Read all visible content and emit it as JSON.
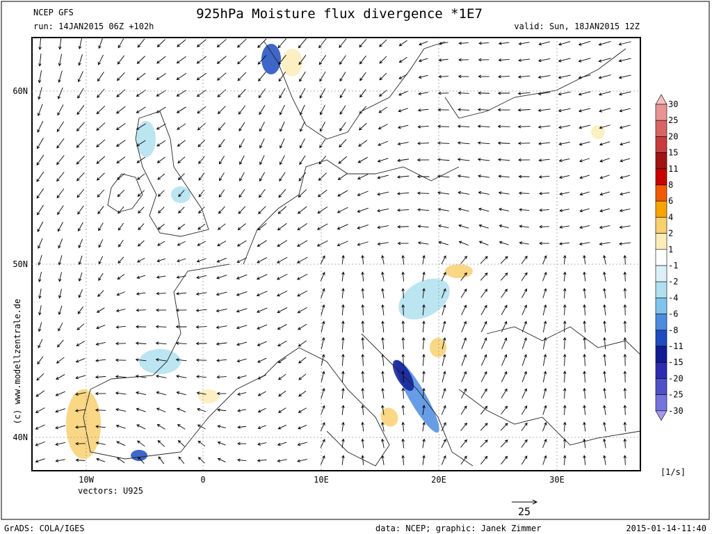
{
  "header": {
    "source": "NCEP GFS",
    "run": "run: 14JAN2015 06Z +102h",
    "title": "925hPa Moisture flux divergence *1E7",
    "valid": "valid: Sun, 18JAN2015 12Z"
  },
  "map": {
    "lat_labels": [
      "60N",
      "50N",
      "40N"
    ],
    "lon_labels": [
      "10W",
      "0",
      "10E",
      "20E",
      "30E"
    ],
    "vectors_label": "vectors: U925",
    "reference_vector": "25",
    "watermark": "(c) www.modellzentrale.de"
  },
  "colorbar": {
    "levels": [
      30,
      25,
      20,
      15,
      11,
      8,
      6,
      4,
      2,
      1,
      -1,
      -2,
      -4,
      -6,
      -8,
      -11,
      -15,
      -20,
      -25,
      -30
    ],
    "colors": [
      "#f4c0c0",
      "#e89494",
      "#d86464",
      "#c83c3c",
      "#a01414",
      "#c80000",
      "#f05a00",
      "#f8a400",
      "#f8d070",
      "#fcecb8",
      "#ffffff",
      "#dcf0f8",
      "#b0e0f0",
      "#80c4ec",
      "#4c8ce0",
      "#1c4cc0",
      "#101c96",
      "#2c2cb0",
      "#5050c8",
      "#7474dc",
      "#a898ec"
    ],
    "unit": "[1/s]"
  },
  "footer": {
    "left": "GrADS: COLA/IGES",
    "center": "data: NCEP; graphic: Janek Zimmer",
    "right": "2015-01-14-11:40"
  }
}
